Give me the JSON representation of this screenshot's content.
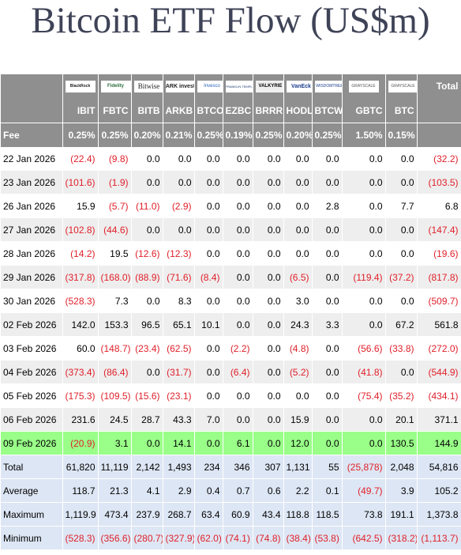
{
  "title": "Bitcoin ETF Flow (US$m)",
  "logos": [
    "BlackRock",
    "Fidelity",
    "Bitwise",
    "ARK invest",
    "Invesco",
    "FRANKLIN TEMPLETON",
    "VALKYRIE",
    "VanEck",
    "WISDOMTREE",
    "GRAYSCALE",
    "GRAYSCALE"
  ],
  "total_header": "Total",
  "tickers": [
    "IBIT",
    "FBTC",
    "BITB",
    "ARKB",
    "BTCO",
    "EZBC",
    "BRRR",
    "HODL",
    "BTCW",
    "GBTC",
    "BTC"
  ],
  "fee": {
    "label": "Fee",
    "values": [
      "0.25%",
      "0.25%",
      "0.20%",
      "0.21%",
      "0.25%",
      "0.19%",
      "0.25%",
      "0.20%",
      "0.25%",
      "1.50%",
      "0.15%"
    ]
  },
  "rows": [
    {
      "date": "22 Jan 2026",
      "values": [
        "(22.4)",
        "(9.8)",
        "0.0",
        "0.0",
        "0.0",
        "0.0",
        "0.0",
        "0.0",
        "0.0",
        "0.0",
        "0.0"
      ],
      "total": "(32.2)"
    },
    {
      "date": "23 Jan 2026",
      "values": [
        "(101.6)",
        "(1.9)",
        "0.0",
        "0.0",
        "0.0",
        "0.0",
        "0.0",
        "0.0",
        "0.0",
        "0.0",
        "0.0"
      ],
      "total": "(103.5)"
    },
    {
      "date": "26 Jan 2026",
      "values": [
        "15.9",
        "(5.7)",
        "(11.0)",
        "(2.9)",
        "0.0",
        "0.0",
        "0.0",
        "0.0",
        "2.8",
        "0.0",
        "7.7"
      ],
      "total": "6.8"
    },
    {
      "date": "27 Jan 2026",
      "values": [
        "(102.8)",
        "(44.6)",
        "0.0",
        "0.0",
        "0.0",
        "0.0",
        "0.0",
        "0.0",
        "0.0",
        "0.0",
        "0.0"
      ],
      "total": "(147.4)"
    },
    {
      "date": "28 Jan 2026",
      "values": [
        "(14.2)",
        "19.5",
        "(12.6)",
        "(12.3)",
        "0.0",
        "0.0",
        "0.0",
        "0.0",
        "0.0",
        "0.0",
        "0.0"
      ],
      "total": "(19.6)"
    },
    {
      "date": "29 Jan 2026",
      "values": [
        "(317.8)",
        "(168.0)",
        "(88.9)",
        "(71.6)",
        "(8.4)",
        "0.0",
        "0.0",
        "(6.5)",
        "0.0",
        "(119.4)",
        "(37.2)"
      ],
      "total": "(817.8)"
    },
    {
      "date": "30 Jan 2026",
      "values": [
        "(528.3)",
        "7.3",
        "0.0",
        "8.3",
        "0.0",
        "0.0",
        "0.0",
        "3.0",
        "0.0",
        "0.0",
        "0.0"
      ],
      "total": "(509.7)"
    },
    {
      "date": "02 Feb 2026",
      "values": [
        "142.0",
        "153.3",
        "96.5",
        "65.1",
        "10.1",
        "0.0",
        "0.0",
        "24.3",
        "3.3",
        "0.0",
        "67.2"
      ],
      "total": "561.8"
    },
    {
      "date": "03 Feb 2026",
      "values": [
        "60.0",
        "(148.7)",
        "(23.4)",
        "(62.5)",
        "0.0",
        "(2.2)",
        "0.0",
        "(4.8)",
        "0.0",
        "(56.6)",
        "(33.8)"
      ],
      "total": "(272.0)"
    },
    {
      "date": "04 Feb 2026",
      "values": [
        "(373.4)",
        "(86.4)",
        "0.0",
        "(31.7)",
        "0.0",
        "(6.4)",
        "0.0",
        "(5.2)",
        "0.0",
        "(41.8)",
        "0.0"
      ],
      "total": "(544.9)"
    },
    {
      "date": "05 Feb 2026",
      "values": [
        "(175.3)",
        "(109.5)",
        "(15.6)",
        "(23.1)",
        "0.0",
        "0.0",
        "0.0",
        "0.0",
        "0.0",
        "(75.4)",
        "(35.2)"
      ],
      "total": "(434.1)"
    },
    {
      "date": "06 Feb 2026",
      "values": [
        "231.6",
        "24.5",
        "28.7",
        "43.3",
        "7.0",
        "0.0",
        "0.0",
        "15.9",
        "0.0",
        "0.0",
        "20.1"
      ],
      "total": "371.1"
    },
    {
      "date": "09 Feb 2026",
      "values": [
        "(20.9)",
        "3.1",
        "0.0",
        "14.1",
        "0.0",
        "6.1",
        "0.0",
        "12.0",
        "0.0",
        "0.0",
        "130.5"
      ],
      "total": "144.9",
      "highlight": true
    }
  ],
  "summary": [
    {
      "label": "Total",
      "values": [
        "61,820",
        "11,119",
        "2,142",
        "1,493",
        "234",
        "346",
        "307",
        "1,131",
        "55",
        "(25,878)",
        "2,048"
      ],
      "total": "54,816"
    },
    {
      "label": "Average",
      "values": [
        "118.7",
        "21.3",
        "4.1",
        "2.9",
        "0.4",
        "0.7",
        "0.6",
        "2.2",
        "0.1",
        "(49.7)",
        "3.9"
      ],
      "total": "105.2"
    },
    {
      "label": "Maximum",
      "values": [
        "1,119.9",
        "473.4",
        "237.9",
        "268.7",
        "63.4",
        "60.9",
        "43.4",
        "118.8",
        "118.5",
        "73.8",
        "191.1"
      ],
      "total": "1,373.8"
    },
    {
      "label": "Minimum",
      "values": [
        "(528.3)",
        "(356.6)",
        "(280.7)",
        "(327.9)",
        "(62.0)",
        "(74.1)",
        "(74.8)",
        "(38.4)",
        "(53.8)",
        "(642.5)",
        "(318.2)"
      ],
      "total": "(1,113.7)"
    }
  ],
  "colors": {
    "header_bg": "#8f8f8f",
    "negative": "#e0202a",
    "highlight_row": "#99ff88",
    "summary_bg": "#dde6f4",
    "title": "#3f4357"
  }
}
